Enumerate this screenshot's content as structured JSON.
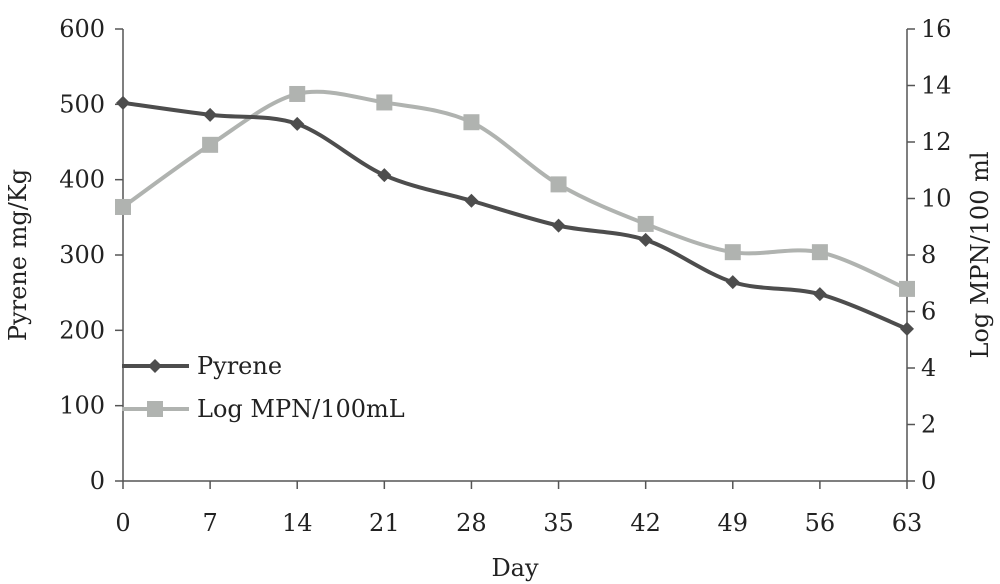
{
  "chart_data": {
    "type": "line",
    "xlabel": "Day",
    "ylabel": "Pyrene mg/Kg",
    "ylabel_right": "Log MPN/100 ml",
    "x": [
      0,
      7,
      14,
      21,
      28,
      35,
      42,
      49,
      56,
      63
    ],
    "x_ticks": [
      "0",
      "7",
      "14",
      "21",
      "28",
      "35",
      "42",
      "49",
      "56",
      "63"
    ],
    "ylim": [
      0,
      600
    ],
    "y_ticks": [
      "0",
      "100",
      "200",
      "300",
      "400",
      "500",
      "600"
    ],
    "ylim_right": [
      0,
      16
    ],
    "y_ticks_right": [
      "0",
      "2",
      "4",
      "6",
      "8",
      "10",
      "12",
      "14",
      "16"
    ],
    "grid": false,
    "legend_position": "lower-left",
    "series": [
      {
        "name": "Pyrene",
        "axis": "left",
        "marker": "diamond",
        "color": "#4d4d4d",
        "values": [
          502,
          486,
          474,
          406,
          372,
          339,
          320,
          264,
          248,
          202
        ]
      },
      {
        "name": "Log MPN/100mL",
        "axis": "right",
        "marker": "square",
        "color": "#b0b3b0",
        "values": [
          9.7,
          11.9,
          13.7,
          13.4,
          12.7,
          10.5,
          9.1,
          8.1,
          8.1,
          6.8
        ]
      }
    ]
  }
}
